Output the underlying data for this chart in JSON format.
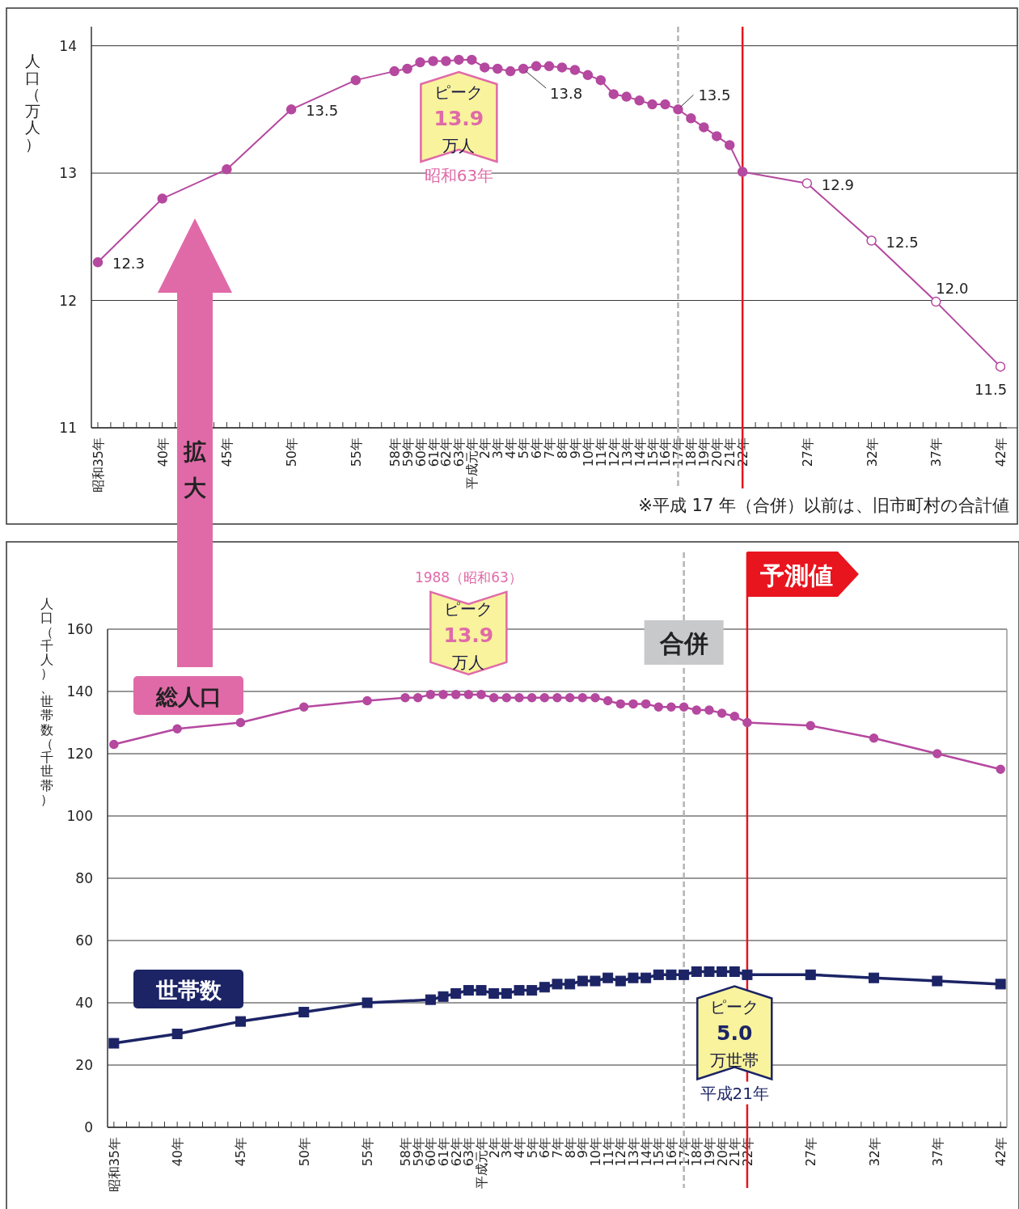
{
  "chart_data": [
    {
      "type": "line",
      "ylabel": "人口（万人）",
      "ylim": [
        11,
        14.15
      ],
      "yticks": [
        11,
        12,
        13,
        14
      ],
      "grid": "y",
      "categories": [
        "昭和35年",
        null,
        null,
        null,
        null,
        "40年",
        null,
        null,
        null,
        null,
        "45年",
        null,
        null,
        null,
        null,
        "50年",
        null,
        null,
        null,
        null,
        "55年",
        null,
        null,
        "58年",
        "59年",
        "60年",
        "61年",
        "62年",
        "63年",
        "平成元年",
        "2年",
        "3年",
        "4年",
        "5年",
        "6年",
        "7年",
        "8年",
        "9年",
        "10年",
        "11年",
        "12年",
        "13年",
        "14年",
        "15年",
        "16年",
        "17年",
        "18年",
        "19年",
        "20年",
        "21年",
        "22年",
        null,
        null,
        null,
        null,
        "27年",
        null,
        null,
        null,
        null,
        "32年",
        null,
        null,
        null,
        null,
        "37年",
        null,
        null,
        null,
        null,
        "42年"
      ],
      "series": [
        {
          "color": "#b5489f",
          "marker": "circle",
          "values": [
            12.3,
            null,
            null,
            null,
            null,
            12.8,
            null,
            null,
            null,
            null,
            13.03,
            null,
            null,
            null,
            null,
            13.5,
            null,
            null,
            null,
            null,
            13.73,
            null,
            null,
            13.8,
            13.82,
            13.87,
            13.88,
            13.88,
            13.89,
            13.89,
            13.83,
            13.82,
            13.8,
            13.82,
            13.84,
            13.84,
            13.83,
            13.81,
            13.77,
            13.73,
            13.62,
            13.6,
            13.57,
            13.54,
            13.54,
            13.5,
            13.43,
            13.36,
            13.29,
            13.22,
            13.01,
            null,
            null,
            null,
            null,
            12.92,
            null,
            null,
            null,
            null,
            12.47,
            null,
            null,
            null,
            null,
            11.99,
            null,
            null,
            null,
            null,
            11.48
          ],
          "colors": [
            "#b5489f",
            null,
            null,
            null,
            null,
            "#b5489f",
            null,
            null,
            null,
            null,
            "#b5489f",
            null,
            null,
            null,
            null,
            "#b5489f",
            null,
            null,
            null,
            null,
            "#b5489f",
            null,
            null,
            "#b5489f",
            "#b5489f",
            "#b5489f",
            "#b5489f",
            "#b5489f",
            "#b5489f",
            "#b5489f",
            "#b5489f",
            "#b5489f",
            "#b5489f",
            "#b5489f",
            "#b5489f",
            "#b5489f",
            "#b5489f",
            "#b5489f",
            "#b5489f",
            "#b5489f",
            "#b5489f",
            "#b5489f",
            "#b5489f",
            "#b5489f",
            "#b5489f",
            "#b5489f",
            "#b5489f",
            "#b5489f",
            "#b5489f",
            "#b5489f",
            "#b5489f",
            null,
            null,
            null,
            null,
            "#ffffff",
            null,
            null,
            null,
            null,
            "#ffffff",
            null,
            null,
            null,
            null,
            "#ffffff",
            null,
            null,
            null,
            null,
            "#ffffff"
          ],
          "value_labels": [
            "12.3",
            null,
            null,
            null,
            null,
            null,
            null,
            null,
            null,
            null,
            null,
            null,
            null,
            null,
            null,
            "13.5",
            null,
            null,
            null,
            null,
            null,
            null,
            null,
            null,
            null,
            null,
            null,
            null,
            null,
            null,
            null,
            null,
            null,
            "13.8",
            null,
            null,
            null,
            null,
            null,
            null,
            null,
            null,
            null,
            null,
            null,
            "13.5",
            null,
            null,
            null,
            null,
            null,
            null,
            null,
            null,
            null,
            "12.9",
            null,
            null,
            null,
            null,
            "12.5",
            null,
            null,
            null,
            null,
            "12.0",
            null,
            null,
            null,
            null,
            "11.5"
          ]
        }
      ],
      "ref_lines": [
        {
          "axis": "x",
          "value": "17年",
          "color": "#b4b4b4",
          "line_style": "dashed"
        },
        {
          "axis": "x",
          "value": "22年",
          "color": "#e8141e",
          "line_style": "solid"
        }
      ],
      "annotations": [
        {
          "text": "ピーク13.9万人",
          "x": "63年",
          "y": 13.89
        },
        "昭和63年",
        "※平成 17 年（合併）以前は、旧市町村の合計値",
        "拡大"
      ]
    },
    {
      "type": "line",
      "ylabel": "人口（千人）、世帯数（千世帯）",
      "ylim": [
        0,
        160
      ],
      "yticks": [
        0,
        20,
        40,
        60,
        80,
        100,
        120,
        140,
        160
      ],
      "grid": "y",
      "categories": [
        "昭和35年",
        null,
        null,
        null,
        null,
        "40年",
        null,
        null,
        null,
        null,
        "45年",
        null,
        null,
        null,
        null,
        "50年",
        null,
        null,
        null,
        null,
        "55年",
        null,
        null,
        "58年",
        "59年",
        "60年",
        "61年",
        "62年",
        "63年",
        "平成元年",
        "2年",
        "3年",
        "4年",
        "5年",
        "6年",
        "7年",
        "8年",
        "9年",
        "10年",
        "11年",
        "12年",
        "13年",
        "14年",
        "15年",
        "16年",
        "17年",
        "18年",
        "19年",
        "20年",
        "21年",
        "22年",
        null,
        null,
        null,
        null,
        "27年",
        null,
        null,
        null,
        null,
        "32年",
        null,
        null,
        null,
        null,
        "37年",
        null,
        null,
        null,
        null,
        "42年"
      ],
      "series": [
        {
          "name": "総人口",
          "color": "#b5489f",
          "marker": "circle",
          "values": [
            123,
            null,
            null,
            null,
            null,
            128,
            null,
            null,
            null,
            null,
            130,
            null,
            null,
            null,
            null,
            135,
            null,
            null,
            null,
            null,
            137,
            null,
            null,
            138,
            138,
            139,
            139,
            139,
            139,
            139,
            138,
            138,
            138,
            138,
            138,
            138,
            138,
            138,
            138,
            137,
            136,
            136,
            136,
            135,
            135,
            135,
            134,
            134,
            133,
            132,
            130,
            null,
            null,
            null,
            null,
            129,
            null,
            null,
            null,
            null,
            125,
            null,
            null,
            null,
            null,
            120,
            null,
            null,
            null,
            null,
            115
          ]
        },
        {
          "name": "世帯数",
          "color": "#1c2466",
          "marker": "square",
          "values": [
            27,
            null,
            null,
            null,
            null,
            30,
            null,
            null,
            null,
            null,
            34,
            null,
            null,
            null,
            null,
            37,
            null,
            null,
            null,
            null,
            40,
            null,
            null,
            null,
            null,
            41,
            42,
            43,
            44,
            44,
            43,
            43,
            44,
            44,
            45,
            46,
            46,
            47,
            47,
            48,
            47,
            48,
            48,
            49,
            49,
            49,
            50,
            50,
            50,
            50,
            49,
            null,
            null,
            null,
            null,
            49,
            null,
            null,
            null,
            null,
            48,
            null,
            null,
            null,
            null,
            47,
            null,
            null,
            null,
            null,
            46
          ]
        }
      ],
      "ref_lines": [
        {
          "axis": "x",
          "value": "17年",
          "color": "#b4b4b4",
          "line_style": "dashed",
          "label": "合併"
        },
        {
          "axis": "x",
          "value": "22年",
          "color": "#e8141e",
          "line_style": "solid",
          "label": "予測値"
        }
      ],
      "annotations": [
        "1988（昭和63）",
        {
          "text": "ピーク13.9万人",
          "x": "63年",
          "y": 139
        },
        {
          "text": "ピーク5.0万世帯",
          "x": "21年",
          "y": 50
        },
        "平成21年"
      ]
    }
  ]
}
